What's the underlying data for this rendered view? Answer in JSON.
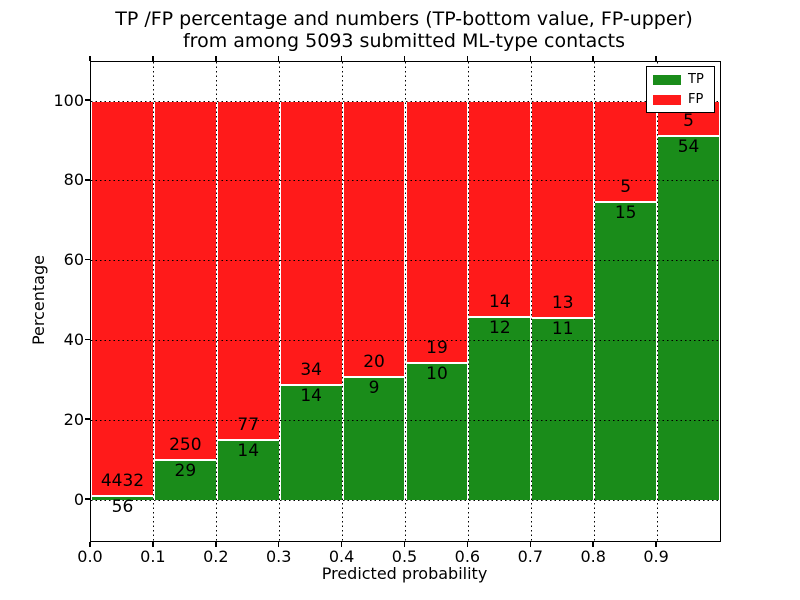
{
  "title": {
    "line1": "TP /FP percentage and numbers (TP-bottom value, FP-upper)",
    "line2": "from among 5093 submitted ML-type contacts"
  },
  "axes": {
    "xlabel": "Predicted probability",
    "ylabel": "Percentage"
  },
  "legend": {
    "position": "upper right",
    "items": [
      {
        "label": "TP",
        "color": "#1a8c1a"
      },
      {
        "label": "FP",
        "color": "#ff1a1a"
      }
    ]
  },
  "chart_data": {
    "type": "bar",
    "variant": "stacked-percentage-histogram",
    "title": "TP /FP percentage and numbers (TP-bottom value, FP-upper) from among 5093 submitted ML-type contacts",
    "xlabel": "Predicted probability",
    "ylabel": "Percentage",
    "total_submitted": 5093,
    "bin_edges": [
      0.0,
      0.1,
      0.2,
      0.3,
      0.4,
      0.5,
      0.6,
      0.7,
      0.8,
      0.9,
      1.0
    ],
    "series": [
      {
        "name": "TP",
        "color": "#1a8c1a",
        "counts": [
          56,
          29,
          14,
          14,
          9,
          10,
          12,
          11,
          15,
          54
        ]
      },
      {
        "name": "FP",
        "color": "#ff1a1a",
        "counts": [
          4432,
          250,
          77,
          34,
          20,
          19,
          14,
          13,
          5,
          5
        ]
      }
    ],
    "tp_percent_per_bin": [
      1.25,
      10.39,
      15.38,
      29.17,
      31.03,
      34.48,
      46.15,
      45.83,
      75.0,
      91.53
    ],
    "x_tick_labels": [
      "0.0",
      "0.1",
      "0.2",
      "0.3",
      "0.4",
      "0.5",
      "0.6",
      "0.7",
      "0.8",
      "0.9"
    ],
    "y_ticks": [
      0,
      20,
      40,
      60,
      80,
      100
    ],
    "y_tick_labels": [
      "0",
      "20",
      "40",
      "60",
      "80",
      "100"
    ],
    "xlim": [
      0.0,
      1.0
    ],
    "ylim": [
      -10.3,
      109.8
    ],
    "grid": "dotted, both axes",
    "legend_position": "upper right"
  }
}
